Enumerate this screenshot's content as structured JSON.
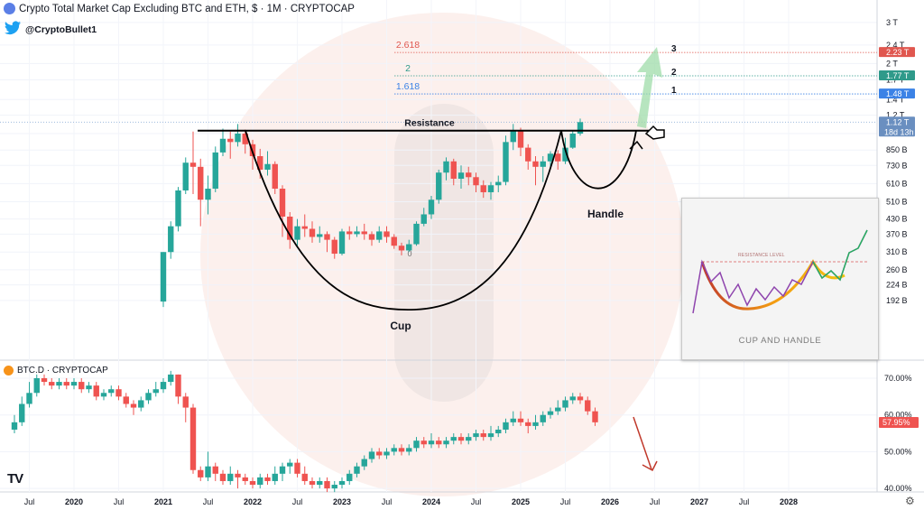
{
  "header": {
    "title": "Crypto Total Market Cap Excluding BTC and ETH, $ · 1M · CRYPTOCAP",
    "twitter_handle": "@CryptoBullet1",
    "lower_symbol": "BTC.D · CRYPTOCAP"
  },
  "colors": {
    "up": "#26a69a",
    "down": "#ef5350",
    "watermark": "#f3c9c0",
    "fib_2618": "#e0574f",
    "fib_2": "#2f9a8a",
    "fib_1618": "#3b82e6",
    "price_label": "#6a8fc0"
  },
  "icons": {
    "title": "cryptocap-icon",
    "twitter": "twitter-bird-icon",
    "lower": "bitcoin-icon",
    "logo": "tradingview-logo",
    "settings": "gear-icon",
    "hand": "pointing-hand-icon"
  },
  "chart_data": [
    {
      "type": "candlestick",
      "title": "Crypto Total Market Cap Excluding BTC and ETH, $ · 1M · CRYPTOCAP",
      "scale": "log",
      "y_ticks": [
        "3 T",
        "2.4 T",
        "2 T",
        "1.7 T",
        "1.4 T",
        "1.2 T",
        "1 T",
        "850 B",
        "730 B",
        "610 B",
        "510 B",
        "430 B",
        "370 B",
        "310 B",
        "260 B",
        "224 B",
        "192 B"
      ],
      "x_ticks": [
        "Jul",
        "2020",
        "Jul",
        "2021",
        "Jul",
        "2022",
        "Jul",
        "2023",
        "Jul",
        "2024",
        "Jul",
        "2025",
        "Jul",
        "2026",
        "Jul",
        "2027",
        "Jul",
        "2028"
      ],
      "price_labels": [
        {
          "text": "2.23 T",
          "value": 2.23,
          "color": "#e0574f"
        },
        {
          "text": "1.77 T",
          "value": 1.77,
          "color": "#2f9a8a"
        },
        {
          "text": "1.48 T",
          "value": 1.48,
          "color": "#3b82e6"
        },
        {
          "text": "1.12 T",
          "value": 1.12,
          "color": "#6a8fc0",
          "sub": "18d 13h"
        }
      ],
      "fib_levels": [
        {
          "label": "2.618",
          "value": 2.23,
          "target": "3"
        },
        {
          "label": "2",
          "value": 1.77,
          "target": "2"
        },
        {
          "label": "1.618",
          "value": 1.48,
          "target": "1"
        },
        {
          "label": "0",
          "value": 0.305
        }
      ],
      "annotations": [
        "Resistance",
        "Cup",
        "Handle"
      ],
      "resistance_value": 1.03,
      "start": "2021-01",
      "candles_trillions": [
        [
          0.19,
          0.31,
          0.31,
          0.18
        ],
        [
          0.31,
          0.4,
          0.42,
          0.29
        ],
        [
          0.4,
          0.57,
          0.59,
          0.38
        ],
        [
          0.57,
          0.75,
          0.79,
          0.55
        ],
        [
          0.75,
          0.72,
          1.02,
          0.55
        ],
        [
          0.72,
          0.52,
          0.78,
          0.4
        ],
        [
          0.52,
          0.58,
          0.66,
          0.45
        ],
        [
          0.58,
          0.83,
          0.88,
          0.56
        ],
        [
          0.83,
          0.95,
          1.05,
          0.8
        ],
        [
          0.95,
          0.92,
          1.02,
          0.78
        ],
        [
          0.92,
          1.0,
          1.1,
          0.88
        ],
        [
          1.0,
          0.9,
          1.04,
          0.82
        ],
        [
          0.9,
          0.8,
          0.94,
          0.7
        ],
        [
          0.8,
          0.7,
          0.86,
          0.64
        ],
        [
          0.7,
          0.74,
          0.84,
          0.66
        ],
        [
          0.74,
          0.58,
          0.76,
          0.55
        ],
        [
          0.58,
          0.44,
          0.6,
          0.36
        ],
        [
          0.44,
          0.35,
          0.46,
          0.32
        ],
        [
          0.35,
          0.4,
          0.43,
          0.33
        ],
        [
          0.4,
          0.39,
          0.45,
          0.36
        ],
        [
          0.39,
          0.36,
          0.42,
          0.34
        ],
        [
          0.36,
          0.37,
          0.4,
          0.34
        ],
        [
          0.37,
          0.35,
          0.38,
          0.31
        ],
        [
          0.35,
          0.305,
          0.36,
          0.29
        ],
        [
          0.305,
          0.38,
          0.39,
          0.3
        ],
        [
          0.38,
          0.37,
          0.4,
          0.35
        ],
        [
          0.37,
          0.38,
          0.4,
          0.36
        ],
        [
          0.38,
          0.37,
          0.41,
          0.35
        ],
        [
          0.37,
          0.35,
          0.38,
          0.33
        ],
        [
          0.35,
          0.38,
          0.4,
          0.34
        ],
        [
          0.38,
          0.36,
          0.4,
          0.34
        ],
        [
          0.36,
          0.33,
          0.37,
          0.32
        ],
        [
          0.33,
          0.315,
          0.34,
          0.3
        ],
        [
          0.315,
          0.335,
          0.35,
          0.31
        ],
        [
          0.335,
          0.41,
          0.42,
          0.33
        ],
        [
          0.41,
          0.45,
          0.48,
          0.4
        ],
        [
          0.45,
          0.52,
          0.54,
          0.43
        ],
        [
          0.52,
          0.68,
          0.7,
          0.5
        ],
        [
          0.68,
          0.76,
          0.79,
          0.63
        ],
        [
          0.76,
          0.64,
          0.78,
          0.6
        ],
        [
          0.64,
          0.68,
          0.73,
          0.58
        ],
        [
          0.68,
          0.65,
          0.72,
          0.6
        ],
        [
          0.65,
          0.6,
          0.68,
          0.56
        ],
        [
          0.6,
          0.56,
          0.63,
          0.53
        ],
        [
          0.56,
          0.6,
          0.62,
          0.52
        ],
        [
          0.6,
          0.62,
          0.66,
          0.56
        ],
        [
          0.62,
          0.92,
          0.98,
          0.6
        ],
        [
          0.92,
          1.03,
          1.1,
          0.85
        ],
        [
          1.03,
          0.87,
          1.06,
          0.8
        ],
        [
          0.87,
          0.76,
          0.9,
          0.7
        ],
        [
          0.76,
          0.72,
          0.8,
          0.6
        ],
        [
          0.72,
          0.76,
          0.8,
          0.62
        ],
        [
          0.76,
          0.82,
          0.84,
          0.7
        ],
        [
          0.82,
          0.76,
          0.85,
          0.7
        ],
        [
          0.76,
          0.87,
          0.96,
          0.74
        ],
        [
          0.87,
          1.0,
          1.03,
          0.86
        ],
        [
          1.0,
          1.12,
          1.16,
          0.98
        ]
      ]
    },
    {
      "type": "candlestick",
      "title": "BTC.D · CRYPTOCAP",
      "y_ticks": [
        "70.00%",
        "60.00%",
        "50.00%",
        "40.00%"
      ],
      "last_label": "57.95%",
      "start": "2019-05",
      "candles_percent": [
        [
          56,
          58,
          60,
          55
        ],
        [
          58,
          63,
          65,
          57
        ],
        [
          63,
          66,
          69,
          62
        ],
        [
          66,
          70,
          71,
          65
        ],
        [
          70,
          69,
          71,
          68
        ],
        [
          69,
          68,
          70,
          67
        ],
        [
          68,
          69,
          70,
          67
        ],
        [
          69,
          68,
          70,
          67
        ],
        [
          68,
          69,
          70,
          67
        ],
        [
          69,
          67,
          70,
          66
        ],
        [
          67,
          68,
          69,
          66
        ],
        [
          68,
          65,
          69,
          64
        ],
        [
          65,
          66,
          67,
          64
        ],
        [
          66,
          67,
          68,
          65
        ],
        [
          67,
          65,
          68,
          64
        ],
        [
          65,
          63,
          66,
          62
        ],
        [
          63,
          62,
          64,
          60
        ],
        [
          62,
          64,
          65,
          61
        ],
        [
          64,
          66,
          67,
          63
        ],
        [
          66,
          67,
          69,
          65
        ],
        [
          67,
          69,
          70,
          66
        ],
        [
          69,
          71,
          72,
          68
        ],
        [
          71,
          65,
          71,
          63
        ],
        [
          65,
          62,
          66,
          58
        ],
        [
          62,
          45,
          63,
          44
        ],
        [
          45,
          43,
          46,
          42
        ],
        [
          43,
          46,
          50,
          42
        ],
        [
          46,
          44,
          47,
          42
        ],
        [
          44,
          42,
          45,
          41
        ],
        [
          42,
          44,
          46,
          41
        ],
        [
          44,
          43,
          45,
          40
        ],
        [
          43,
          42,
          44,
          41
        ],
        [
          42,
          41,
          43,
          40
        ],
        [
          41,
          43,
          44,
          40
        ],
        [
          43,
          42,
          44,
          41
        ],
        [
          42,
          44,
          46,
          41
        ],
        [
          44,
          46,
          47,
          42
        ],
        [
          46,
          47,
          48,
          44
        ],
        [
          47,
          44,
          48,
          43
        ],
        [
          44,
          42,
          46,
          41
        ],
        [
          42,
          41,
          43,
          40
        ],
        [
          41,
          42,
          43,
          40
        ],
        [
          42,
          40,
          43,
          39
        ],
        [
          40,
          41,
          42,
          39
        ],
        [
          41,
          42,
          43,
          40
        ],
        [
          42,
          44,
          45,
          41
        ],
        [
          44,
          46,
          47,
          43
        ],
        [
          46,
          48,
          49,
          45
        ],
        [
          48,
          50,
          51,
          47
        ],
        [
          50,
          49,
          51,
          48
        ],
        [
          49,
          50,
          51,
          48
        ],
        [
          50,
          51,
          52,
          49
        ],
        [
          51,
          50,
          52,
          49
        ],
        [
          50,
          51,
          52,
          49
        ],
        [
          51,
          53,
          54,
          50
        ],
        [
          53,
          52,
          54,
          51
        ],
        [
          52,
          53,
          55,
          51
        ],
        [
          53,
          52,
          54,
          51
        ],
        [
          52,
          53,
          54,
          51
        ],
        [
          53,
          54,
          55,
          52
        ],
        [
          54,
          53,
          55,
          52
        ],
        [
          53,
          54,
          55,
          52
        ],
        [
          54,
          55,
          56,
          53
        ],
        [
          55,
          54,
          56,
          53
        ],
        [
          54,
          55,
          57,
          53
        ],
        [
          55,
          56,
          57,
          54
        ],
        [
          56,
          58,
          59,
          55
        ],
        [
          58,
          59,
          61,
          57
        ],
        [
          59,
          58,
          61,
          57
        ],
        [
          58,
          57,
          59,
          55
        ],
        [
          57,
          58,
          60,
          56
        ],
        [
          58,
          60,
          61,
          57
        ],
        [
          60,
          61,
          62,
          59
        ],
        [
          61,
          62,
          64,
          60
        ],
        [
          62,
          64,
          65,
          61
        ],
        [
          64,
          65,
          66,
          63
        ],
        [
          65,
          64,
          66,
          63
        ],
        [
          64,
          61,
          65,
          60
        ],
        [
          61,
          58,
          62,
          57
        ]
      ]
    }
  ]
}
